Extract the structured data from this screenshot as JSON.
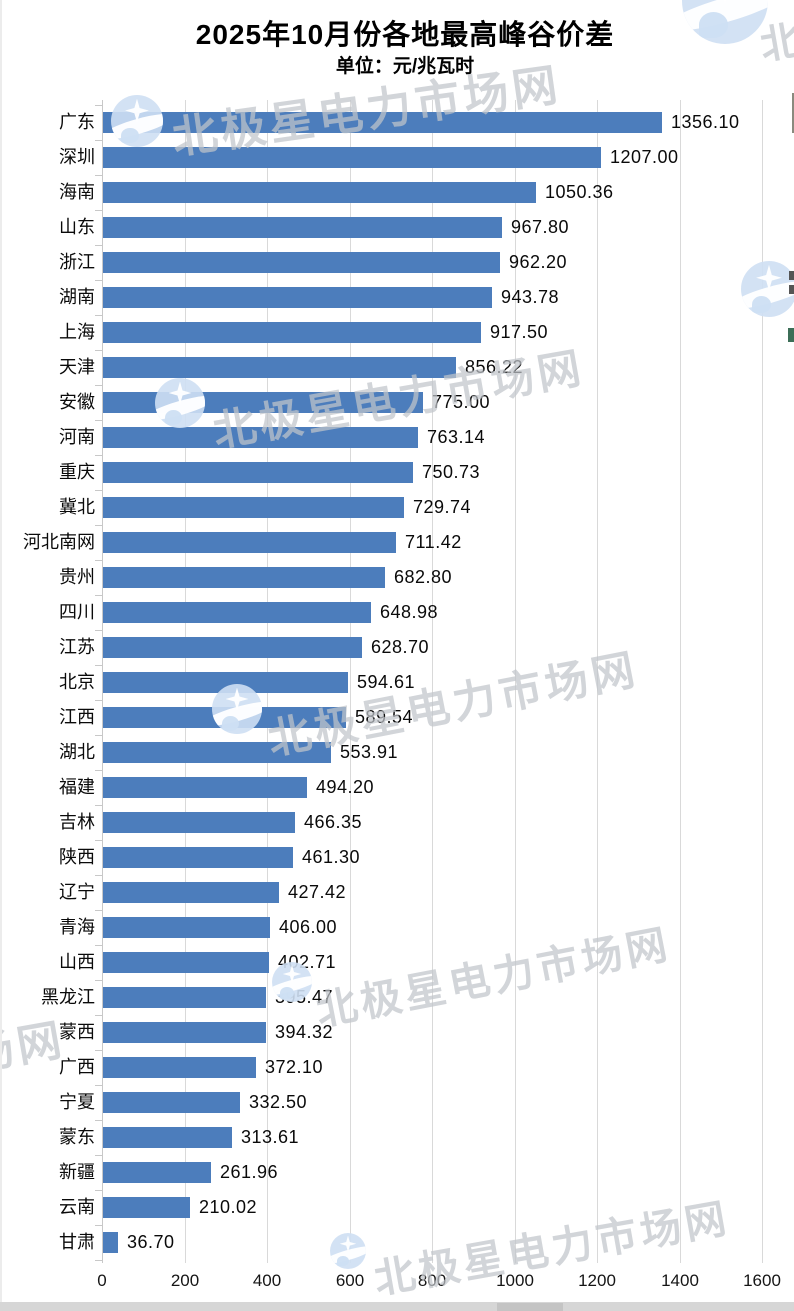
{
  "title": "2025年10月份各地最高峰谷价差",
  "subtitle_unit": "单位：元/兆瓦时",
  "watermark": {
    "text": "北极星电力市场网",
    "logo": "beijixing-polar-star-logo"
  },
  "colors": {
    "bar": "#4C7DBC",
    "gridline": "#D9D9D9",
    "axis": "#C8C8C8",
    "watermark_text": "#C6CBD1",
    "watermark_logo": "#CFE0F3",
    "edge_strip": "#D6D6D6"
  },
  "chart_data": {
    "type": "bar",
    "orientation": "horizontal",
    "title": "2025年10月份各地最高峰谷价差",
    "subtitle_unit": "单位：元/兆瓦时",
    "xlabel": "",
    "ylabel": "",
    "xlim": [
      0,
      1600
    ],
    "x_ticks": [
      0,
      200,
      400,
      600,
      800,
      1000,
      1200,
      1400,
      1600
    ],
    "x_tick_labels": [
      "0",
      "200",
      "400",
      "600",
      "800",
      "1000",
      "1200",
      "1400",
      "1600"
    ],
    "grid": "vertical",
    "legend": "none",
    "categories": [
      "广东",
      "深圳",
      "海南",
      "山东",
      "浙江",
      "湖南",
      "上海",
      "天津",
      "安徽",
      "河南",
      "重庆",
      "冀北",
      "河北南网",
      "贵州",
      "四川",
      "江苏",
      "北京",
      "江西",
      "湖北",
      "福建",
      "吉林",
      "陕西",
      "辽宁",
      "青海",
      "山西",
      "黑龙江",
      "蒙西",
      "广西",
      "宁夏",
      "蒙东",
      "新疆",
      "云南",
      "甘肃"
    ],
    "values": [
      1356.1,
      1207.0,
      1050.36,
      967.8,
      962.2,
      943.78,
      917.5,
      856.22,
      775.0,
      763.14,
      750.73,
      729.74,
      711.42,
      682.8,
      648.98,
      628.7,
      594.61,
      589.54,
      553.91,
      494.2,
      466.35,
      461.3,
      427.42,
      406.0,
      402.71,
      395.47,
      394.32,
      372.1,
      332.5,
      313.61,
      261.96,
      210.02,
      36.7
    ],
    "value_labels": [
      "1356.10",
      "1207.00",
      "1050.36",
      "967.80",
      "962.20",
      "943.78",
      "917.50",
      "856.22",
      "775.00",
      "763.14",
      "750.73",
      "729.74",
      "711.42",
      "682.80",
      "648.98",
      "628.70",
      "594.61",
      "589.54",
      "553.91",
      "494.20",
      "466.35",
      "461.30",
      "427.42",
      "406.00",
      "402.71",
      "395.47",
      "394.32",
      "372.10",
      "332.50",
      "313.61",
      "261.96",
      "210.02",
      "36.70"
    ]
  }
}
